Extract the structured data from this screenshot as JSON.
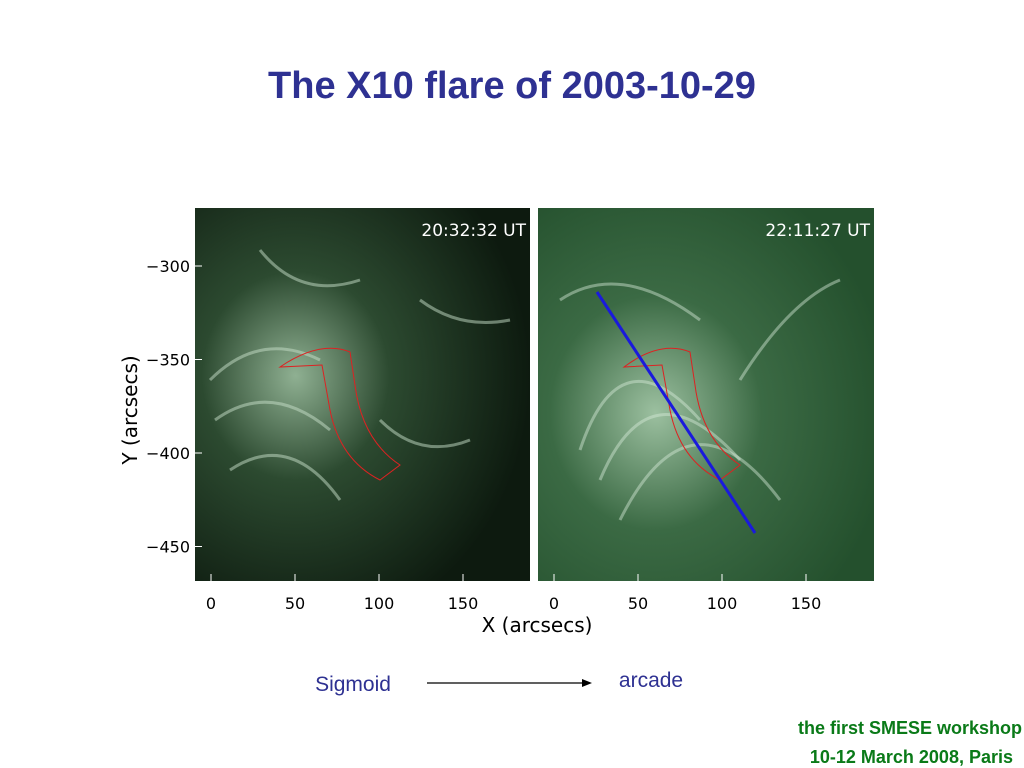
{
  "slide": {
    "title": "The X10 flare of 2003-10-29",
    "panels": [
      {
        "timestamp": "20:32:32 UT",
        "x_ticks": [
          "0",
          "50",
          "100",
          "150"
        ]
      },
      {
        "timestamp": "22:11:27 UT",
        "x_ticks": [
          "0",
          "50",
          "100",
          "150"
        ]
      }
    ],
    "y_ticks": [
      "−300",
      "−350",
      "−400",
      "−450"
    ],
    "x_axis_title": "X (arcsecs)",
    "y_axis_title": "Y (arcsecs)",
    "annotation_from": "Sigmoid",
    "annotation_to": "arcade",
    "footer": [
      "the first SMESE workshop",
      "10-12 March 2008, Paris"
    ]
  }
}
